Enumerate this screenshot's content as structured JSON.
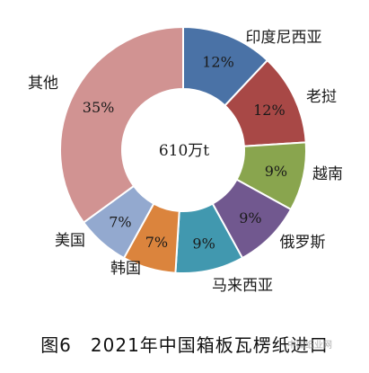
{
  "chart_data": {
    "type": "pie",
    "donut": true,
    "center_text": "610万t",
    "caption": "图6　2021年中国箱板瓦楞纸进口",
    "slices": [
      {
        "name": "印度尼西亚",
        "value": 12,
        "label": "12%",
        "color": "#4a72a6"
      },
      {
        "name": "老挝",
        "value": 12,
        "label": "12%",
        "color": "#a84846"
      },
      {
        "name": "越南",
        "value": 9,
        "label": "9%",
        "color": "#89a54e"
      },
      {
        "name": "俄罗斯",
        "value": 9,
        "label": "9%",
        "color": "#71588f"
      },
      {
        "name": "马来西亚",
        "value": 9,
        "label": "9%",
        "color": "#4198af"
      },
      {
        "name": "韩国",
        "value": 7,
        "label": "7%",
        "color": "#db843d"
      },
      {
        "name": "美国",
        "value": 7,
        "label": "7%",
        "color": "#93a9cf"
      },
      {
        "name": "其他",
        "value": 35,
        "label": "35%",
        "color": "#d19392"
      }
    ]
  },
  "watermark": "中国纸业网"
}
